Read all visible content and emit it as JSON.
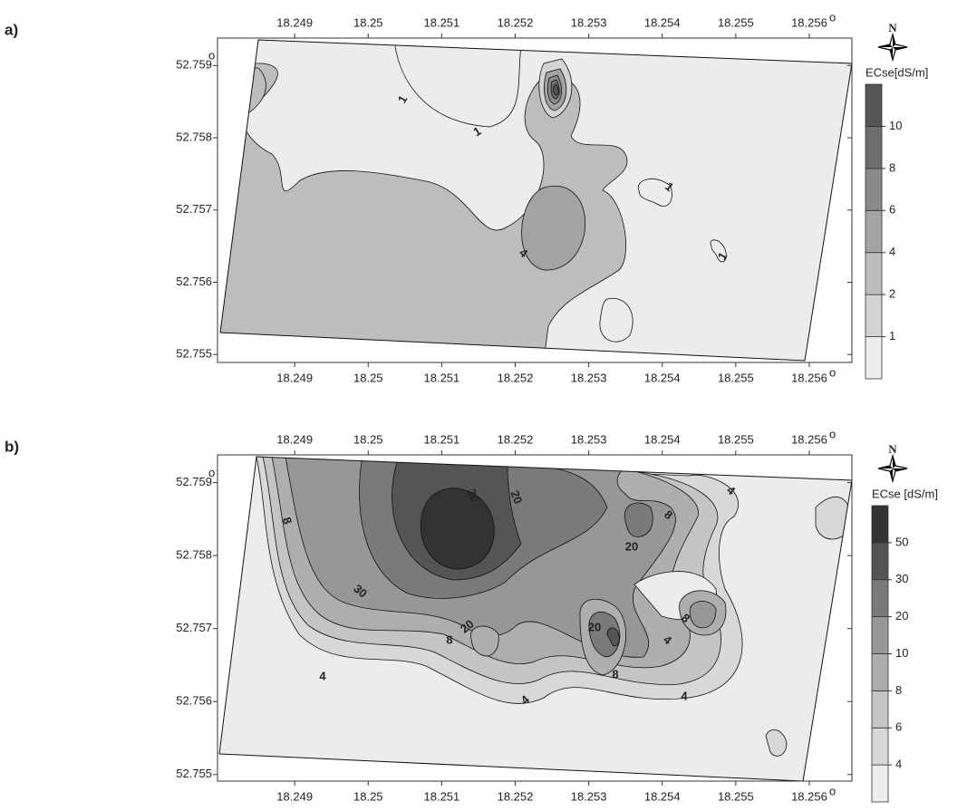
{
  "chart_data": [
    {
      "type": "contour",
      "panel_label": "a)",
      "xlim": [
        18.24795,
        18.25658
      ],
      "ylim": [
        52.75489,
        52.75938
      ],
      "xticks": [
        18.249,
        18.25,
        18.251,
        18.252,
        18.253,
        18.254,
        18.255,
        18.256
      ],
      "yticks": [
        52.755,
        52.756,
        52.757,
        52.758,
        52.759
      ],
      "unit_mark": "o",
      "compass_label": "N",
      "legend_title": "ECse[dS/m]",
      "levels": [
        1,
        2,
        4,
        6,
        8,
        10
      ],
      "level_colors": [
        "#ececec",
        "#d4d4d4",
        "#bdbdbd",
        "#a3a3a3",
        "#8a8a8a",
        "#6e6e6e",
        "#555555"
      ],
      "contour_labels": [
        1,
        1,
        1,
        1,
        4
      ]
    },
    {
      "type": "contour",
      "panel_label": "b)",
      "xlim": [
        18.24795,
        18.25658
      ],
      "ylim": [
        52.75491,
        52.75938
      ],
      "xticks": [
        18.249,
        18.25,
        18.251,
        18.252,
        18.253,
        18.254,
        18.255,
        18.256
      ],
      "yticks": [
        52.755,
        52.756,
        52.757,
        52.758,
        52.759
      ],
      "unit_mark": "o",
      "compass_label": "N",
      "legend_title": "ECse [dS/m]",
      "levels": [
        4,
        6,
        8,
        10,
        20,
        30,
        50
      ],
      "level_colors": [
        "#ececec",
        "#d8d8d8",
        "#c4c4c4",
        "#aeaeae",
        "#979797",
        "#7a7a7a",
        "#555555",
        "#333333"
      ],
      "contour_labels": [
        8,
        30,
        20,
        20,
        8,
        4,
        30,
        20,
        8,
        4,
        4,
        8,
        4,
        4,
        8,
        20
      ]
    }
  ]
}
